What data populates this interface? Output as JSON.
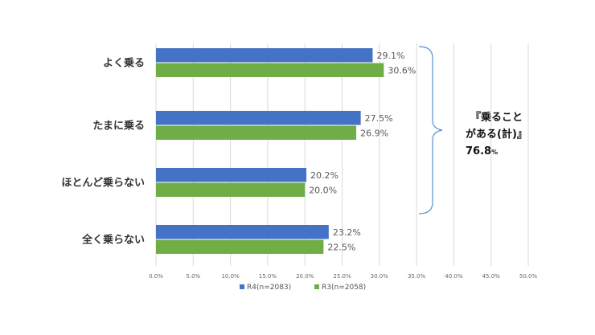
{
  "chart_data": {
    "type": "bar",
    "orientation": "horizontal",
    "categories": [
      "よく乗る",
      "たまに乗る",
      "ほとんど乗らない",
      "全く乗らない"
    ],
    "series": [
      {
        "name": "R4(n=2083)",
        "color": "#4472c4",
        "values": [
          29.1,
          27.5,
          20.2,
          23.2
        ]
      },
      {
        "name": "R3(n=2058)",
        "color": "#70ad47",
        "values": [
          30.6,
          26.9,
          20.0,
          22.5
        ]
      }
    ],
    "xlim": [
      0,
      50
    ],
    "xticks": [
      "0.0%",
      "5.0%",
      "10.0%",
      "15.0%",
      "20.0%",
      "25.0%",
      "30.0%",
      "35.0%",
      "40.0%",
      "45.0%",
      "50.0%"
    ],
    "value_labels": [
      [
        "29.1%",
        "27.5%",
        "20.2%",
        "23.2%"
      ],
      [
        "30.6%",
        "26.9%",
        "20.0%",
        "22.5%"
      ]
    ],
    "grid": true,
    "legend_position": "bottom",
    "annotation": {
      "line1": "『乗ること",
      "line2": "がある(計)』",
      "value": "76.8",
      "unit": "%"
    }
  }
}
